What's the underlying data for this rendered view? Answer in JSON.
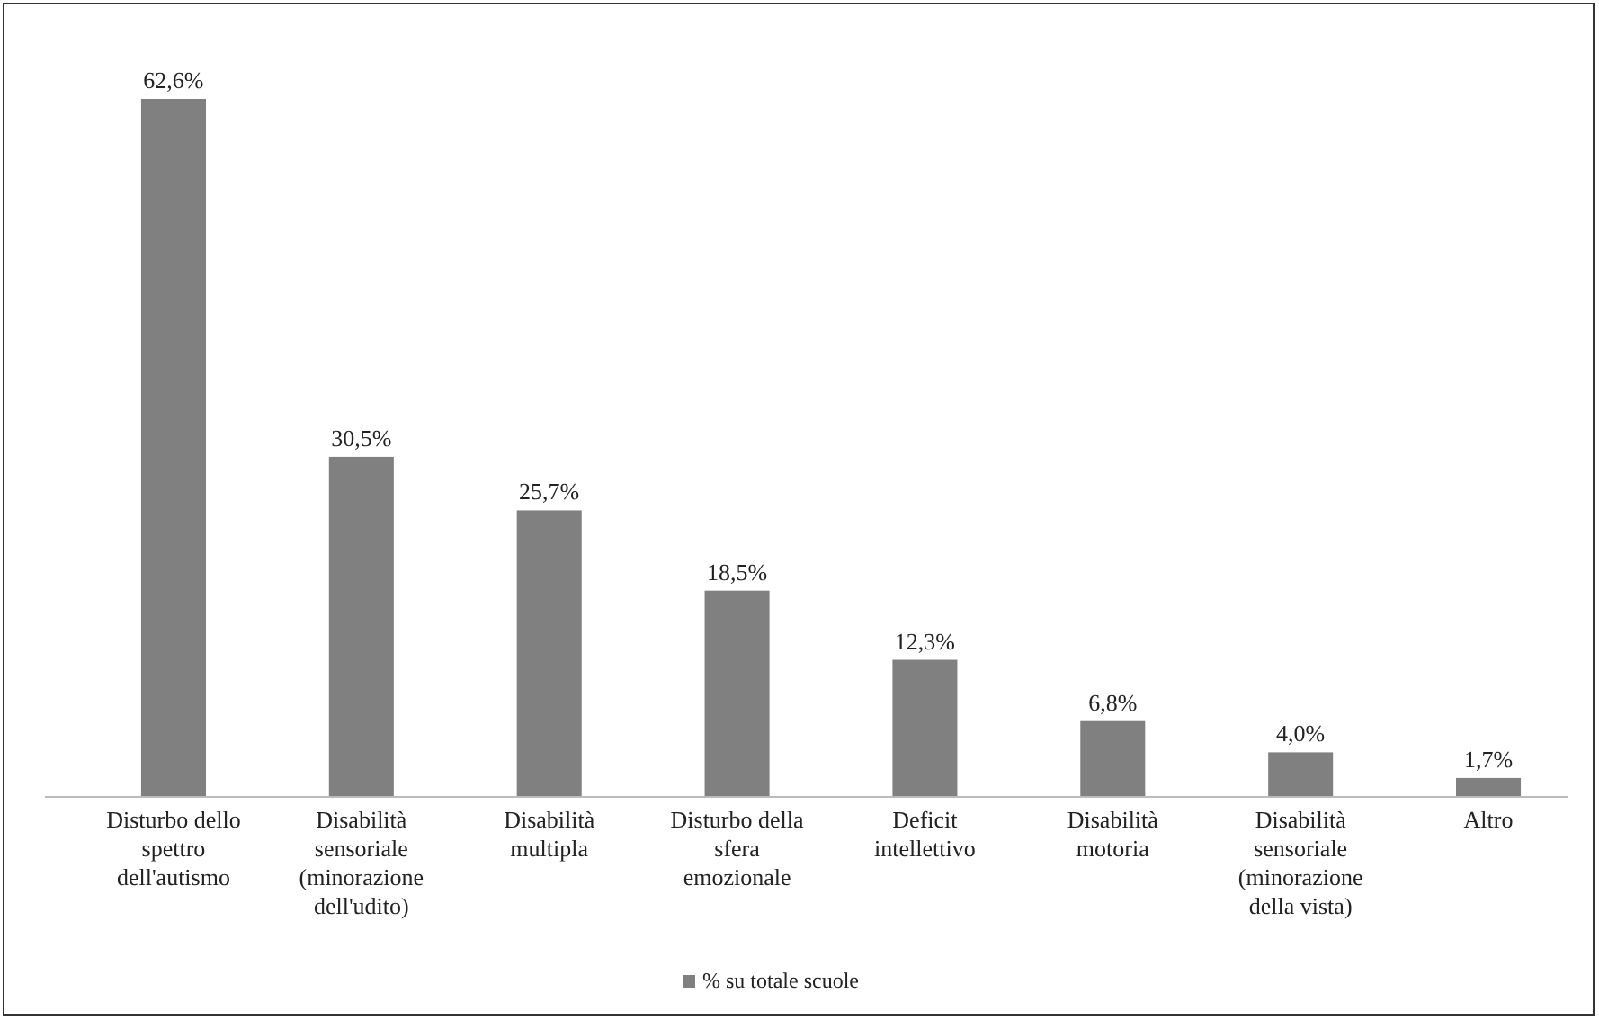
{
  "chart_data": {
    "type": "bar",
    "categories": [
      "Disturbo dello spettro dell'autismo",
      "Disabilità sensoriale (minorazione dell'udito)",
      "Disabilità multipla",
      "Disturbo della sfera emozionale",
      "Deficit intellettivo",
      "Disabilità motoria",
      "Disabilità sensoriale (minorazione della vista)",
      "Altro"
    ],
    "series": [
      {
        "name": "% su totale scuole",
        "color": "#808080",
        "values": [
          62.6,
          30.5,
          25.7,
          18.5,
          12.3,
          6.8,
          4.0,
          1.7
        ],
        "value_labels": [
          "62,6%",
          "30,5%",
          "25,7%",
          "18,5%",
          "12,3%",
          "6,8%",
          "4,0%",
          "1,7%"
        ]
      }
    ],
    "legend": "bottom"
  }
}
